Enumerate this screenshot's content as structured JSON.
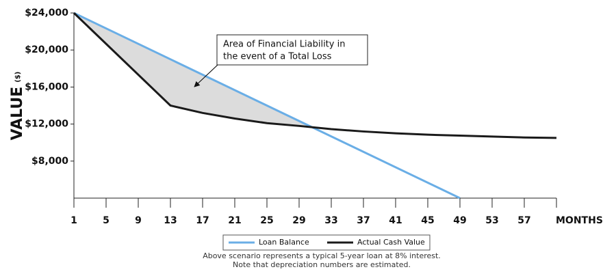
{
  "chart_data": {
    "type": "line",
    "y_label": "VALUE",
    "y_unit": "($)",
    "x_label": "MONTHS",
    "annotation": [
      "Area of Financial Liability in",
      "the event of a Total Loss"
    ],
    "footnote": [
      "Above scenario represents a typical 5-year loan at 8% interest.",
      "Note that depreciation numbers are estimated."
    ],
    "xlim": [
      1,
      61
    ],
    "xticks": [
      1,
      5,
      9,
      13,
      17,
      21,
      25,
      29,
      33,
      37,
      41,
      45,
      49,
      53,
      57
    ],
    "ylim": [
      4000,
      24000
    ],
    "yticks": [
      {
        "value": 8000,
        "label": "$8,000"
      },
      {
        "value": 12000,
        "label": "$12,000"
      },
      {
        "value": 16000,
        "label": "$16,000"
      },
      {
        "value": 20000,
        "label": "$20,000"
      },
      {
        "value": 24000,
        "label": "$24,000"
      }
    ],
    "fill_color": "#dcdcdc",
    "series": [
      {
        "name": "Loan Balance",
        "color": "#6aaee6",
        "x": [
          1,
          49
        ],
        "values": [
          24000,
          4000
        ]
      },
      {
        "name": "Actual Cash Value",
        "color": "#1a1a1a",
        "x": [
          1,
          13,
          17,
          21,
          25,
          29,
          33,
          37,
          41,
          45,
          49,
          53,
          57,
          61
        ],
        "values": [
          24000,
          14000,
          13200,
          12600,
          12100,
          11800,
          11450,
          11200,
          11000,
          10850,
          10750,
          10650,
          10550,
          10500
        ]
      }
    ]
  }
}
